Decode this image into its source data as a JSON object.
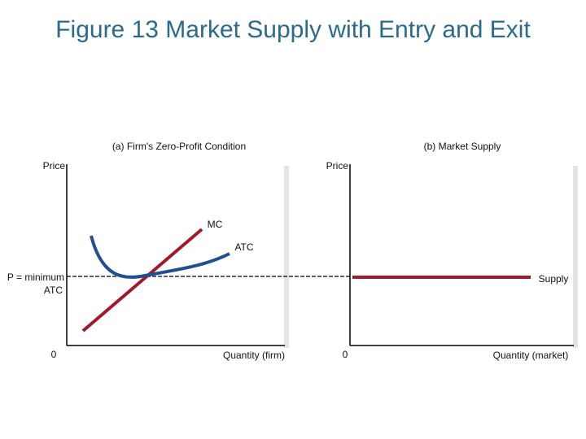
{
  "header": {
    "title": "Figure 13 Market Supply with Entry and Exit"
  },
  "panel_a": {
    "title": "(a) Firm's Zero-Profit Condition",
    "y_label": "Price",
    "x_label": "Quantity (firm)",
    "origin": "0",
    "curves": [
      "MC",
      "ATC"
    ],
    "price_label": [
      "P = minimum",
      "ATC"
    ]
  },
  "panel_b": {
    "title": "(b) Market Supply",
    "y_label": "Price",
    "x_label": "Quantity (market)",
    "origin": "0",
    "curve": "Supply"
  }
}
